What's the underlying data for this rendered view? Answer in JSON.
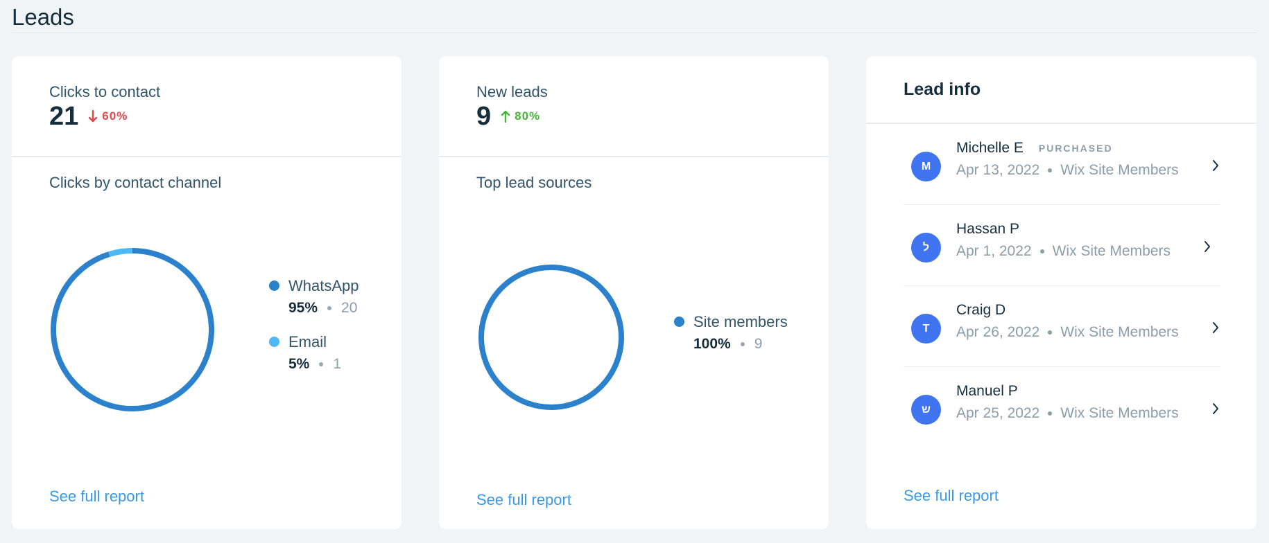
{
  "page": {
    "title": "Leads"
  },
  "clicks_card": {
    "kpi_label": "Clicks to contact",
    "kpi_value": "21",
    "trend": {
      "direction": "down",
      "text": "60%",
      "color": "#e0484a"
    },
    "section_title": "Clicks by contact channel",
    "legend": [
      {
        "name": "WhatsApp",
        "percent": "95%",
        "count": "20",
        "color": "#2b81cb"
      },
      {
        "name": "Email",
        "percent": "5%",
        "count": "1",
        "color": "#4eb7f5"
      }
    ],
    "full_report_label": "See full report"
  },
  "leads_card": {
    "kpi_label": "New leads",
    "kpi_value": "9",
    "trend": {
      "direction": "up",
      "text": "80%",
      "color": "#44b538"
    },
    "section_title": "Top lead sources",
    "legend": [
      {
        "name": "Site members",
        "percent": "100%",
        "count": "9",
        "color": "#2b81cb"
      }
    ],
    "full_report_label": "See full report"
  },
  "lead_info": {
    "title": "Lead info",
    "leads": [
      {
        "initial": "M",
        "name": "Michelle E",
        "badge": "PURCHASED",
        "date": "Apr 13, 2022",
        "source": "Wix Site Members"
      },
      {
        "initial": "ל",
        "name": "Hassan P",
        "badge": "",
        "date": "Apr 1, 2022",
        "source": "Wix Site Members"
      },
      {
        "initial": "T",
        "name": "Craig D",
        "badge": "",
        "date": "Apr 26, 2022",
        "source": "Wix Site Members"
      },
      {
        "initial": "ש",
        "name": "Manuel P",
        "badge": "",
        "date": "Apr 25, 2022",
        "source": "Wix Site Members"
      }
    ],
    "full_report_label": "See full report"
  },
  "chart_data": [
    {
      "type": "pie",
      "donut": true,
      "title": "Clicks by contact channel",
      "categories": [
        "WhatsApp",
        "Email"
      ],
      "values": [
        20,
        1
      ],
      "percentages": [
        95,
        5
      ],
      "colors": [
        "#2b81cb",
        "#4eb7f5"
      ]
    },
    {
      "type": "pie",
      "donut": true,
      "title": "Top lead sources",
      "categories": [
        "Site members"
      ],
      "values": [
        9
      ],
      "percentages": [
        100
      ],
      "colors": [
        "#2b81cb"
      ]
    }
  ]
}
